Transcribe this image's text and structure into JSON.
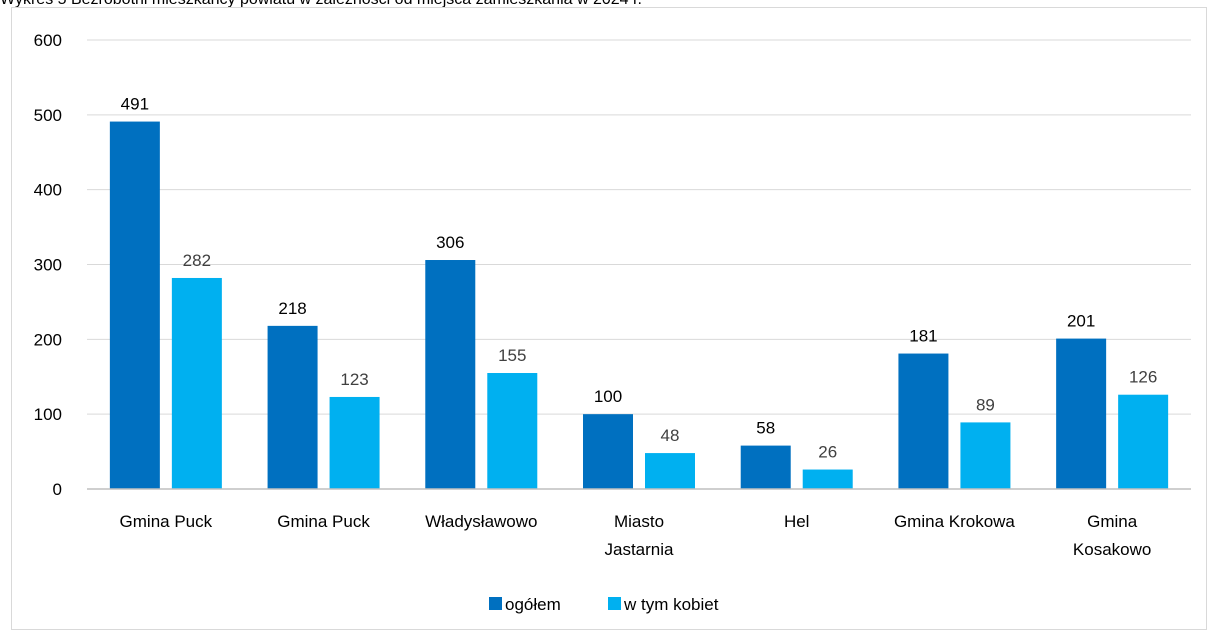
{
  "caption": "Wykres 5 Bezrobotni mieszkańcy powiatu w zależności od miejsca zamieszkania w 2024 r.",
  "chart_data": {
    "type": "bar",
    "title": "",
    "xlabel": "",
    "ylabel": "",
    "ylim": [
      0,
      600
    ],
    "yticks": [
      "0",
      "100",
      "200",
      "300",
      "400",
      "500",
      "600"
    ],
    "grid": true,
    "legend_position": "bottom",
    "categories": [
      [
        "Gmina Puck"
      ],
      [
        "Gmina Puck"
      ],
      [
        "Władysławowo"
      ],
      [
        "Miasto",
        "Jastarnia"
      ],
      [
        "Hel"
      ],
      [
        "Gmina Krokowa"
      ],
      [
        "Gmina",
        "Kosakowo"
      ]
    ],
    "series": [
      {
        "name": "ogółem",
        "color": "#0070c0",
        "label_color": "#000000",
        "values": [
          491,
          218,
          306,
          100,
          58,
          181,
          201
        ]
      },
      {
        "name": "w tym kobiet",
        "color": "#00b0f0",
        "label_color": "#404040",
        "values": [
          282,
          123,
          155,
          48,
          26,
          89,
          126
        ]
      }
    ]
  }
}
